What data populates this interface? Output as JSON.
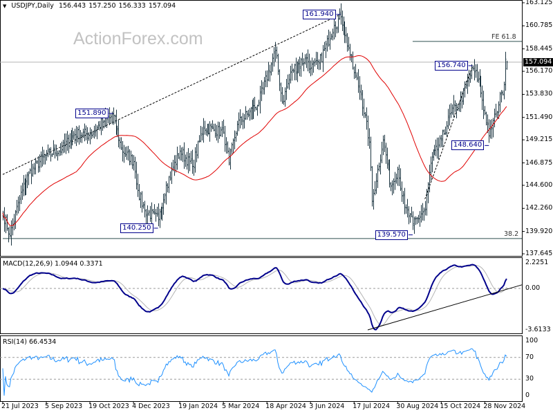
{
  "header": {
    "symbol_timeframe": "USDJPY,Daily",
    "open": "156.443",
    "high": "157.250",
    "low": "156.333",
    "close": "157.094"
  },
  "watermark": "ActionForex.com",
  "chart_data": [
    {
      "type": "ohlc",
      "title": "USDJPY,Daily",
      "ylim": [
        137.645,
        163.125
      ],
      "yticks": [
        "163.125",
        "160.785",
        "158.445",
        "156.170",
        "153.830",
        "151.490",
        "149.215",
        "146.875",
        "144.600",
        "142.260",
        "139.920",
        "137.645"
      ],
      "current_price": "157.094",
      "last_bar": {
        "open": 156.443,
        "high": 157.25,
        "low": 156.333,
        "close": 157.094
      },
      "start_date": "2023-07-21",
      "end_date": "2024-12-20",
      "xticks": [
        {
          "date": "2023-07-21",
          "label": "21 Jul 2023"
        },
        {
          "date": "2023-09-05",
          "label": "5 Sep 2023"
        },
        {
          "date": "2023-10-19",
          "label": "19 Oct 2023"
        },
        {
          "date": "2023-12-04",
          "label": "4 Dec 2023"
        },
        {
          "date": "2024-01-19",
          "label": "19 Jan 2024"
        },
        {
          "date": "2024-03-05",
          "label": "5 Mar 2024"
        },
        {
          "date": "2024-04-18",
          "label": "18 Apr 2024"
        },
        {
          "date": "2024-06-03",
          "label": "3 Jun 2024"
        },
        {
          "date": "2024-07-17",
          "label": "17 Jul 2024"
        },
        {
          "date": "2024-08-30",
          "label": "30 Aug 2024"
        },
        {
          "date": "2024-10-15",
          "label": "15 Oct 2024"
        },
        {
          "date": "2024-11-28",
          "label": "28 Nov 2024"
        }
      ],
      "close_path": [
        [
          "2023-07-21",
          141.8
        ],
        [
          "2023-07-28",
          139.5
        ],
        [
          "2023-08-08",
          143.3
        ],
        [
          "2023-08-17",
          145.8
        ],
        [
          "2023-09-05",
          147.7
        ],
        [
          "2023-09-20",
          148.2
        ],
        [
          "2023-10-03",
          149.8
        ],
        [
          "2023-10-19",
          149.8
        ],
        [
          "2023-11-01",
          151.0
        ],
        [
          "2023-11-13",
          151.7
        ],
        [
          "2023-11-21",
          148.3
        ],
        [
          "2023-12-04",
          147.0
        ],
        [
          "2023-12-07",
          144.1
        ],
        [
          "2023-12-14",
          142.0
        ],
        [
          "2023-12-28",
          141.1
        ],
        [
          "2024-01-05",
          144.6
        ],
        [
          "2024-01-19",
          148.1
        ],
        [
          "2024-02-01",
          146.5
        ],
        [
          "2024-02-13",
          150.5
        ],
        [
          "2024-03-05",
          150.0
        ],
        [
          "2024-03-11",
          146.9
        ],
        [
          "2024-03-19",
          150.8
        ],
        [
          "2024-04-10",
          153.0
        ],
        [
          "2024-04-26",
          158.3
        ],
        [
          "2024-05-03",
          153.0
        ],
        [
          "2024-05-14",
          156.3
        ],
        [
          "2024-05-29",
          157.5
        ],
        [
          "2024-06-03",
          156.5
        ],
        [
          "2024-06-11",
          157.0
        ],
        [
          "2024-06-26",
          160.8
        ],
        [
          "2024-07-03",
          161.7
        ],
        [
          "2024-07-11",
          158.5
        ],
        [
          "2024-07-17",
          156.0
        ],
        [
          "2024-07-24",
          153.8
        ],
        [
          "2024-08-01",
          149.0
        ],
        [
          "2024-08-05",
          143.0
        ],
        [
          "2024-08-15",
          149.2
        ],
        [
          "2024-08-23",
          144.5
        ],
        [
          "2024-08-30",
          146.2
        ],
        [
          "2024-09-06",
          142.3
        ],
        [
          "2024-09-16",
          140.7
        ],
        [
          "2024-09-27",
          142.2
        ],
        [
          "2024-10-03",
          146.9
        ],
        [
          "2024-10-15",
          149.2
        ],
        [
          "2024-10-24",
          152.0
        ],
        [
          "2024-11-01",
          152.8
        ],
        [
          "2024-11-15",
          156.5
        ],
        [
          "2024-11-22",
          154.8
        ],
        [
          "2024-12-03",
          149.6
        ],
        [
          "2024-12-10",
          151.9
        ],
        [
          "2024-12-16",
          154.0
        ],
        [
          "2024-12-18",
          154.8
        ],
        [
          "2024-12-19",
          157.4
        ],
        [
          "2024-12-20",
          157.094
        ]
      ],
      "annotations": [
        {
          "label": "161.940",
          "date": "2024-07-03",
          "price": 161.94,
          "side": "left"
        },
        {
          "label": "151.890",
          "date": "2023-11-13",
          "price": 151.89,
          "side": "left"
        },
        {
          "label": "140.250",
          "date": "2023-12-28",
          "price": 140.25,
          "side": "left"
        },
        {
          "label": "139.570",
          "date": "2024-09-16",
          "price": 139.57,
          "side": "left"
        },
        {
          "label": "156.740",
          "date": "2024-11-15",
          "price": 156.74,
          "side": "left"
        },
        {
          "label": "148.640",
          "date": "2024-12-03",
          "price": 148.64,
          "side": "left"
        }
      ],
      "levels": [
        {
          "label": "FE 61.8",
          "price": 159.2,
          "from_date": "2024-09-16"
        },
        {
          "label": "38.2",
          "price": 139.2,
          "from_date": "2023-07-21"
        }
      ],
      "trendlines": [
        {
          "from": [
            "2023-07-21",
            145.7
          ],
          "to": [
            "2024-07-03",
            161.94
          ],
          "style": "dashed"
        },
        {
          "from": [
            "2024-09-27",
            143.2
          ],
          "to": [
            "2024-11-15",
            156.74
          ],
          "style": "dashed"
        }
      ],
      "series_colors": {
        "bars": "#1b3440",
        "moving_average": "#e00000",
        "price_line": "#b4b4b4"
      }
    },
    {
      "type": "line",
      "title": "MACD(12,26,9) 1.0944 0.3371",
      "ylim": [
        -3.6133,
        2.2251
      ],
      "yticks": [
        "2.2251",
        "0.00",
        "-3.6133"
      ],
      "trendline": {
        "from": [
          "2024-07-31",
          -3.6133
        ],
        "to": [
          "2024-12-20",
          -0.05
        ]
      },
      "series_colors": {
        "macd": "#00008b",
        "signal": "#b4b4b4"
      }
    },
    {
      "type": "line",
      "title": "RSI(14) 66.4534",
      "ylim": [
        0,
        100
      ],
      "yticks": [
        "100",
        "70",
        "30",
        "0"
      ],
      "levels": [
        70,
        30
      ],
      "series_colors": {
        "rsi": "#1e90ff"
      }
    }
  ]
}
